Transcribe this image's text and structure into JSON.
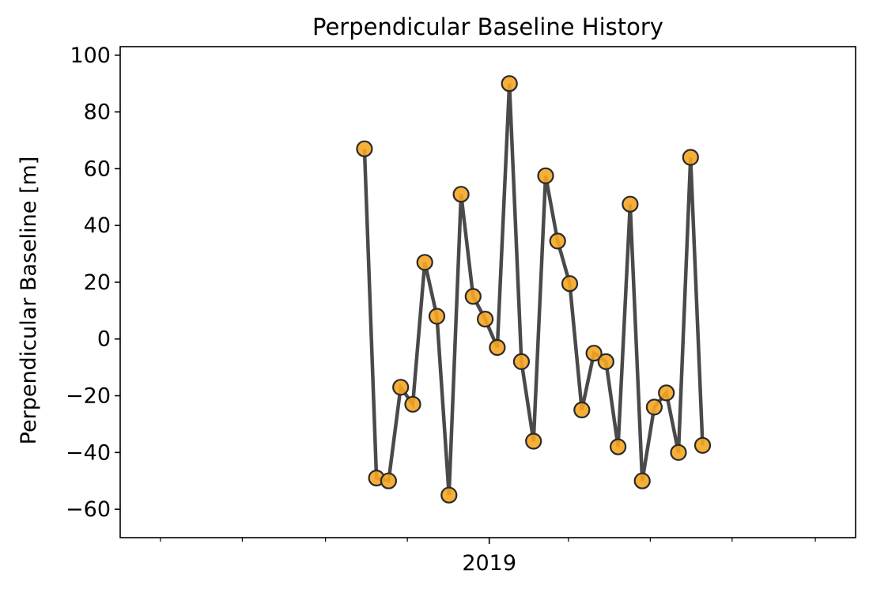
{
  "chart_data": {
    "type": "line",
    "title": "Perpendicular Baseline History",
    "xlabel": "",
    "ylabel": "Perpendicular Baseline [m]",
    "ylim": [
      -70,
      103
    ],
    "yticks": [
      -60,
      -40,
      -20,
      0,
      20,
      40,
      60,
      80,
      100
    ],
    "ytick_labels": [
      "−60",
      "−40",
      "−20",
      "0",
      "20",
      "40",
      "60",
      "80",
      "100"
    ],
    "xlim": [
      "2018-04-01",
      "2019-10-01"
    ],
    "xtick_major": [
      {
        "x": "2019-01-01",
        "label": "2019"
      }
    ],
    "xtick_minor": [
      "2018-05-01",
      "2018-07-01",
      "2018-09-01",
      "2018-11-01",
      "2019-03-01",
      "2019-05-01",
      "2019-07-01",
      "2019-09-01"
    ],
    "grid": false,
    "line_color": "#404040",
    "marker_color": "#f5a623",
    "series": [
      {
        "x": [
          "2018-09-30",
          "2018-10-09",
          "2018-10-18",
          "2018-10-27",
          "2018-11-05",
          "2018-11-14",
          "2018-11-23",
          "2018-12-02",
          "2018-12-11",
          "2018-12-20",
          "2018-12-29",
          "2019-01-07",
          "2019-01-16",
          "2019-01-25",
          "2019-02-03",
          "2019-02-12",
          "2019-02-21",
          "2019-03-02",
          "2019-03-11",
          "2019-03-20",
          "2019-03-29",
          "2019-04-07",
          "2019-04-16",
          "2019-04-25",
          "2019-05-04",
          "2019-05-13",
          "2019-05-22",
          "2019-05-31",
          "2019-06-09",
          "2019-06-18"
        ],
        "values": [
          67,
          -49,
          -50,
          -17,
          -23,
          27,
          8,
          -55,
          51,
          15,
          7,
          -3,
          90,
          -8,
          -36,
          57.5,
          34.5,
          19.5,
          -25,
          -5,
          -8,
          -38,
          47.5,
          -50,
          -24,
          -19,
          -40,
          64,
          -37.5,
          null
        ]
      }
    ]
  }
}
